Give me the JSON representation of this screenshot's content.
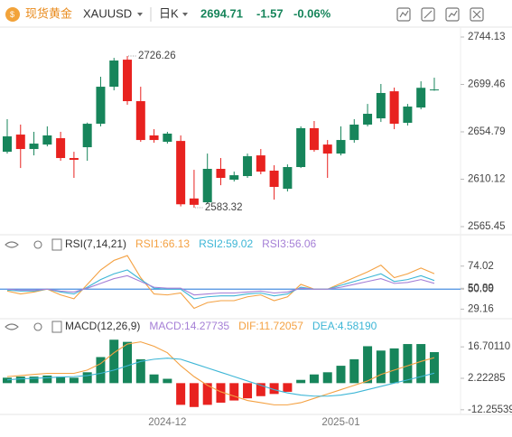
{
  "header": {
    "name": "现货黄金",
    "symbol": "XAUUSD",
    "period": "日K",
    "price": 2694.71,
    "change": -1.57,
    "change_pct": "-0.06%"
  },
  "chart_data": [
    {
      "type": "candlestick",
      "categories": [
        null,
        null,
        null,
        null,
        null,
        null,
        null,
        null,
        null,
        null,
        null,
        null,
        "2024-12",
        null,
        null,
        null,
        null,
        null,
        null,
        null,
        null,
        null,
        null,
        null,
        null,
        "2025-01",
        null,
        null,
        null,
        null,
        null,
        null,
        null
      ],
      "open": [
        2636.0,
        2652.2,
        2638.6,
        2642.8,
        2648.8,
        2630.1,
        2640.3,
        2662.4,
        2697.3,
        2722.8,
        2683.7,
        2651.4,
        2645.4,
        2646.2,
        2592.0,
        2588.4,
        2619.9,
        2609.7,
        2613.1,
        2632.6,
        2618.2,
        2601.1,
        2621.6,
        2658.2,
        2642.8,
        2634.3,
        2647.1,
        2661.6,
        2667.5,
        2693.0,
        2663.3,
        2677.7,
        2694.0
      ],
      "high": [
        2666.7,
        2661.6,
        2654.8,
        2659.9,
        2654.8,
        2636.0,
        2663.5,
        2706.7,
        2724.5,
        2726.26,
        2697.3,
        2657.3,
        2654.8,
        2651.4,
        2619.0,
        2634.3,
        2630.1,
        2617.3,
        2634.3,
        2638.6,
        2623.3,
        2624.1,
        2659.9,
        2665.0,
        2647.1,
        2659.9,
        2666.7,
        2681.1,
        2699.9,
        2696.5,
        2681.1,
        2702.4,
        2705.8
      ],
      "low": [
        2634.3,
        2620.7,
        2632.6,
        2641.1,
        2627.5,
        2611.4,
        2627.5,
        2659.9,
        2693.9,
        2680.3,
        2645.4,
        2644.5,
        2643.7,
        2584.5,
        2583.32,
        2586.7,
        2604.5,
        2608.0,
        2611.4,
        2614.8,
        2590.9,
        2598.6,
        2620.7,
        2636.0,
        2611.4,
        2632.6,
        2644.5,
        2659.9,
        2664.1,
        2657.3,
        2660.7,
        2676.0,
        2693.5
      ],
      "close": [
        2650.5,
        2638.6,
        2643.7,
        2651.4,
        2630.1,
        2628.4,
        2662.4,
        2697.3,
        2722.0,
        2683.7,
        2647.1,
        2647.1,
        2653.1,
        2586.5,
        2586.0,
        2619.9,
        2611.4,
        2613.9,
        2631.8,
        2617.3,
        2602.9,
        2621.6,
        2658.2,
        2637.7,
        2634.3,
        2647.1,
        2661.6,
        2671.8,
        2691.4,
        2662.4,
        2678.6,
        2696.28,
        2694.71
      ],
      "up_color": "#17855b",
      "down_color": "#e8221f",
      "annotations": [
        2726.26,
        2583.32
      ],
      "ylim": [
        2559.5,
        2753.5
      ],
      "yticks": [
        2744.13,
        2699.46,
        2654.79,
        2610.12,
        2565.45
      ]
    },
    {
      "type": "line",
      "title": "RSI(7,14,21)",
      "series": [
        {
          "name": "RSI1:66.13",
          "color": "#f4a142",
          "values": [
            48,
            45,
            47,
            50,
            44,
            40,
            55,
            70,
            80,
            85,
            62,
            45,
            44,
            46,
            30,
            36,
            38,
            38,
            42,
            44,
            38,
            42,
            55,
            50,
            50,
            56,
            62,
            68,
            75,
            62,
            66,
            72,
            66.13
          ]
        },
        {
          "name": "RSI2:59.02",
          "color": "#3db6d6",
          "values": [
            49,
            48,
            48,
            50,
            47,
            45,
            52,
            60,
            66,
            70,
            60,
            51,
            50,
            50,
            40,
            42,
            43,
            43,
            45,
            46,
            43,
            45,
            52,
            50,
            50,
            54,
            58,
            62,
            66,
            58,
            60,
            64,
            59.02
          ]
        },
        {
          "name": "RSI3:56.06",
          "color": "#a57fd6",
          "values": [
            50,
            49,
            49,
            50,
            48,
            47,
            51,
            56,
            61,
            64,
            58,
            52,
            51,
            51,
            44,
            45,
            46,
            46,
            47,
            48,
            46,
            47,
            51,
            50,
            50,
            52,
            55,
            58,
            61,
            56,
            57,
            60,
            56.06
          ]
        }
      ],
      "hlines": [
        50
      ],
      "hline_color": "#4a8fe0",
      "ylim": [
        22,
        102
      ],
      "yticks": [
        74.02,
        50.89,
        {
          "value": 50,
          "label": "50.00"
        },
        29.16
      ]
    },
    {
      "type": "bar",
      "title": "MACD(12,26,9)",
      "series": [
        {
          "name": "MACD:14.27735",
          "color": "#a57fd6",
          "type": "bar",
          "up_color": "#17855b",
          "down_color": "#e8221f",
          "values": [
            2.5,
            3,
            3,
            3.5,
            3,
            2.5,
            5,
            12,
            20,
            19,
            11,
            4,
            2,
            -10,
            -11,
            -10,
            -9,
            -8,
            -7,
            -6,
            -5,
            -4,
            1.5,
            4,
            5,
            8,
            11,
            17,
            15,
            16,
            18,
            18,
            14.27735
          ]
        },
        {
          "name": "DIF:11.72057",
          "color": "#f4a142",
          "type": "line",
          "values": [
            3,
            3.5,
            4,
            4.5,
            4.5,
            4.5,
            6,
            9,
            14,
            18,
            19,
            17,
            14,
            8,
            3,
            -1,
            -4,
            -6,
            -8,
            -9,
            -10,
            -10,
            -9,
            -7,
            -5,
            -3,
            -1,
            1,
            4,
            6,
            8,
            10,
            11.72057
          ]
        },
        {
          "name": "DEA:4.58190",
          "color": "#3db6d6",
          "type": "line",
          "values": [
            1.5,
            2,
            2.2,
            2.5,
            2.8,
            3,
            3.5,
            4.5,
            6,
            8,
            10,
            11,
            11.5,
            11,
            9,
            7,
            5,
            3,
            1,
            -1,
            -3,
            -4.5,
            -5.5,
            -6,
            -6,
            -5.5,
            -4.5,
            -3,
            -1.5,
            0,
            1.5,
            3,
            4.5819
          ]
        }
      ],
      "ylim": [
        -14,
        28
      ],
      "yticks": [
        {
          "value": 16.7011,
          "label": "16.70110"
        },
        2.22285,
        -12.25539
      ]
    }
  ]
}
